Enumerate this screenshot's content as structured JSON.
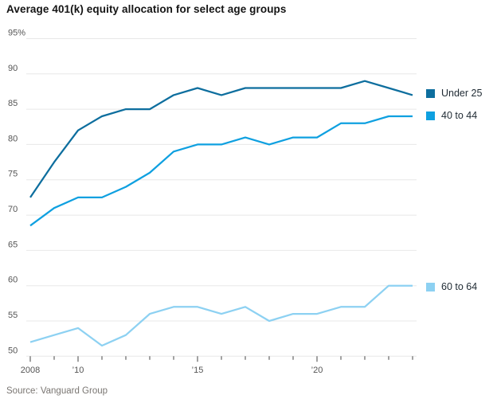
{
  "page": {
    "title": "Average 401(k) equity allocation for select age groups",
    "source": "Source: Vanguard Group"
  },
  "chart_data": {
    "type": "line",
    "title": "Average 401(k) equity allocation for select age groups",
    "source": "Source: Vanguard Group",
    "x": [
      2008,
      2009,
      2010,
      2011,
      2012,
      2013,
      2014,
      2015,
      2016,
      2017,
      2018,
      2019,
      2020,
      2021,
      2022,
      2023,
      2024
    ],
    "x_tick_labels": [
      {
        "year": 2008,
        "label": "2008"
      },
      {
        "year": 2010,
        "label": "’10"
      },
      {
        "year": 2015,
        "label": "’15"
      },
      {
        "year": 2020,
        "label": "’20"
      }
    ],
    "y_ticks": [
      {
        "value": 95,
        "label": "95%"
      },
      {
        "value": 90,
        "label": "90"
      },
      {
        "value": 85,
        "label": "85"
      },
      {
        "value": 80,
        "label": "80"
      },
      {
        "value": 75,
        "label": "75"
      },
      {
        "value": 70,
        "label": "70"
      },
      {
        "value": 65,
        "label": "65"
      },
      {
        "value": 60,
        "label": "60"
      },
      {
        "value": 55,
        "label": "55"
      },
      {
        "value": 50,
        "label": "50"
      }
    ],
    "ylim": [
      50,
      95
    ],
    "unit": "%",
    "grid": "horizontal",
    "legend_position": "right-at-line-ends",
    "series": [
      {
        "name": "Under 25",
        "color": "#0d6e9e",
        "values": [
          72.5,
          77.5,
          82,
          84,
          85,
          85,
          87,
          88,
          87,
          88,
          88,
          88,
          88,
          88,
          89,
          88,
          87
        ]
      },
      {
        "name": "40 to 44",
        "color": "#0fa0e0",
        "values": [
          68.5,
          71,
          72.5,
          72.5,
          74,
          76,
          79,
          80,
          80,
          81,
          80,
          81,
          81,
          83,
          83,
          84,
          84
        ]
      },
      {
        "name": "60 to 64",
        "color": "#8dd1f2",
        "values": [
          52,
          53,
          54,
          51.5,
          53,
          56,
          57,
          57,
          56,
          57,
          55,
          56,
          56,
          57,
          57,
          60,
          60
        ]
      }
    ]
  }
}
